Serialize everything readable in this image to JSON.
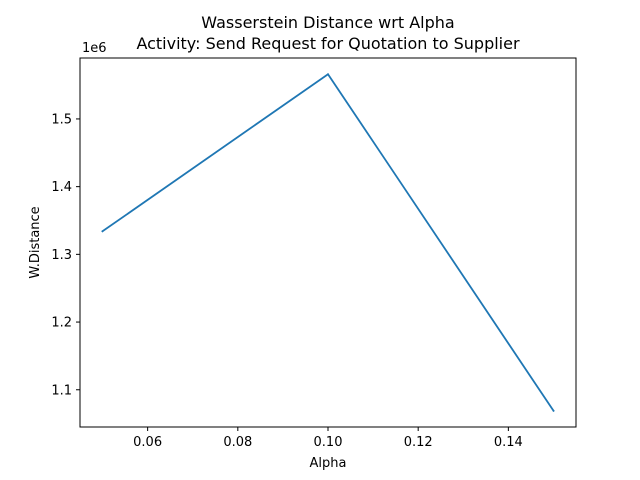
{
  "chart_data": {
    "type": "line",
    "title_lines": [
      "Wasserstein Distance wrt Alpha",
      "Activity: Send Request for Quotation to Supplier"
    ],
    "xlabel": "Alpha",
    "ylabel": "W.Distance",
    "y_offset_label": "1e6",
    "x_ticks": [
      0.06,
      0.08,
      0.1,
      0.12,
      0.14
    ],
    "x_tick_labels": [
      "0.06",
      "0.08",
      "0.10",
      "0.12",
      "0.14"
    ],
    "y_ticks": [
      1.1,
      1.2,
      1.3,
      1.4,
      1.5
    ],
    "y_tick_labels": [
      "1.1",
      "1.2",
      "1.3",
      "1.4",
      "1.5"
    ],
    "xlim": [
      0.045,
      0.155
    ],
    "ylim": [
      1.045,
      1.59
    ],
    "grid": false,
    "series": [
      {
        "color": "#1f77b4",
        "x": [
          0.05,
          0.1,
          0.15
        ],
        "y": [
          1.334,
          1.566,
          1.069
        ]
      }
    ]
  }
}
